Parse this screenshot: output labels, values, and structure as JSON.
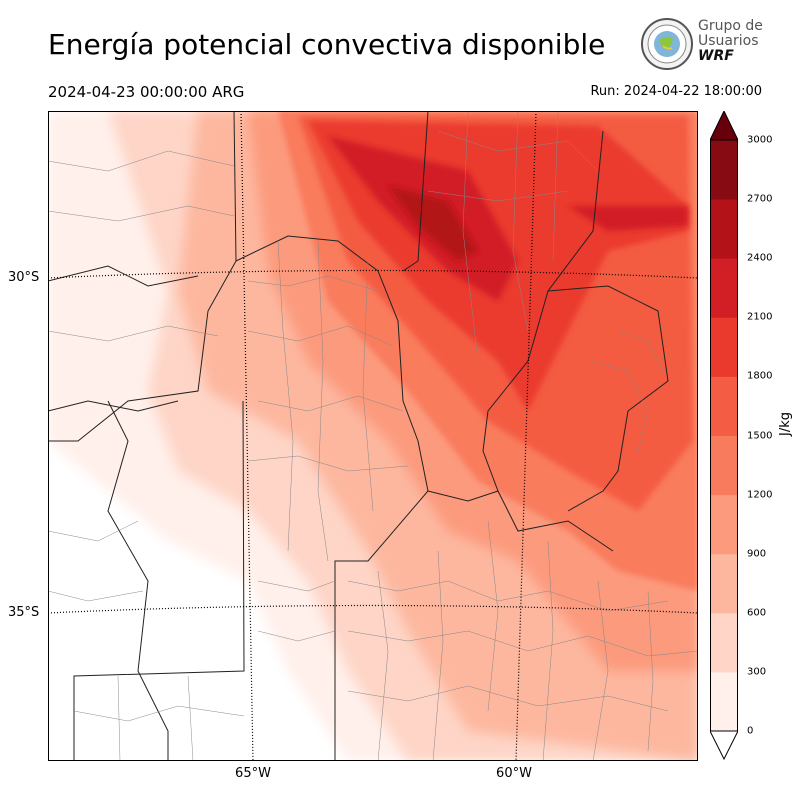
{
  "header": {
    "title": "Energía potencial convectiva disponible",
    "valid_time": "2024-04-23 00:00:00 ARG",
    "run_time": "Run: 2024-04-22 18:00:00"
  },
  "logo": {
    "line1": "Grupo de",
    "line2": "Usuarios",
    "line3": "WRF"
  },
  "map": {
    "lat_labels": [
      {
        "text": "30°S",
        "value": -30
      },
      {
        "text": "35°S",
        "value": -35
      }
    ],
    "lon_labels": [
      {
        "text": "65°W",
        "value": -65
      },
      {
        "text": "60°W",
        "value": -60
      }
    ]
  },
  "colorbar": {
    "unit": "J/kg",
    "ticks": [
      "0",
      "300",
      "600",
      "900",
      "1200",
      "1500",
      "1800",
      "2100",
      "2400",
      "2700",
      "3000"
    ],
    "colors": [
      "#fff0eb",
      "#fed5c7",
      "#fdb79f",
      "#fc9a7d",
      "#f97b5d",
      "#f45c43",
      "#ea3a2e",
      "#d21f25",
      "#b31219",
      "#870b13"
    ],
    "over_color": "#67000d"
  }
}
